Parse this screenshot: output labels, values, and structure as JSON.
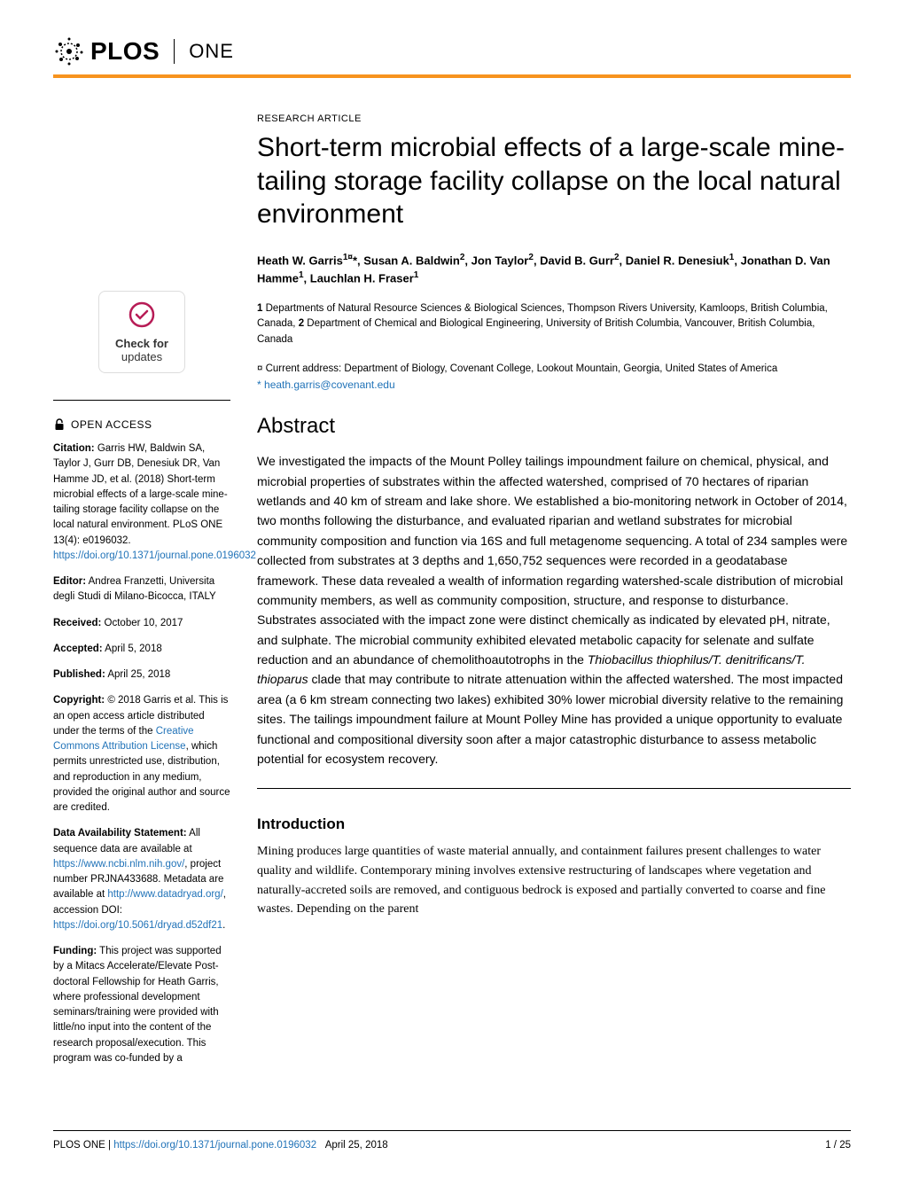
{
  "header": {
    "plos": "PLOS",
    "one": "ONE"
  },
  "article": {
    "type": "RESEARCH ARTICLE",
    "title": "Short-term microbial effects of a large-scale mine-tailing storage facility collapse on the local natural environment",
    "authors_html": "Heath W. Garris<sup>1¤</sup>*, Susan A. Baldwin<sup>2</sup>, Jon Taylor<sup>2</sup>, David B. Gurr<sup>2</sup>, Daniel R. Denesiuk<sup>1</sup>, Jonathan D. Van Hamme<sup>1</sup>, Lauchlan H. Fraser<sup>1</sup>",
    "affiliations_html": "<b>1</b> Departments of Natural Resource Sciences & Biological Sciences, Thompson Rivers University, Kamloops, British Columbia, Canada, <b>2</b> Department of Chemical and Biological Engineering, University of British Columbia, Vancouver, British Columbia, Canada",
    "current_address": "¤ Current address: Department of Biology, Covenant College, Lookout Mountain, Georgia, United States of America",
    "email_prefix": "* ",
    "email": "heath.garris@covenant.edu"
  },
  "abstract": {
    "heading": "Abstract",
    "text_html": "We investigated the impacts of the Mount Polley tailings impoundment failure on chemical, physical, and microbial properties of substrates within the affected watershed, comprised of 70 hectares of riparian wetlands and 40 km of stream and lake shore. We established a bio-monitoring network in October of 2014, two months following the disturbance, and evaluated riparian and wetland substrates for microbial community composition and function via 16S and full metagenome sequencing. A total of 234 samples were collected from substrates at 3 depths and 1,650,752 sequences were recorded in a geodatabase framework. These data revealed a wealth of information regarding watershed-scale distribution of microbial community members, as well as community composition, structure, and response to disturbance. Substrates associated with the impact zone were distinct chemically as indicated by elevated pH, nitrate, and sulphate. The microbial community exhibited elevated metabolic capacity for selenate and sulfate reduction and an abundance of chemolithoautotrophs in the <i>Thiobacillus thiophilus/T. denitrificans/T. thioparus</i> clade that may contribute to nitrate attenuation within the affected watershed. The most impacted area (a 6 km stream connecting two lakes) exhibited 30% lower microbial diversity relative to the remaining sites. The tailings impoundment failure at Mount Polley Mine has provided a unique opportunity to evaluate functional and compositional diversity soon after a major catastrophic disturbance to assess metabolic potential for ecosystem recovery."
  },
  "intro": {
    "heading": "Introduction",
    "text": "Mining produces large quantities of waste material annually, and containment failures present challenges to water quality and wildlife. Contemporary mining involves extensive restructuring of landscapes where vegetation and naturally-accreted soils are removed, and contiguous bedrock is exposed and partially converted to coarse and fine wastes. Depending on the parent"
  },
  "sidebar": {
    "check_updates": "Check for",
    "check_updates_sub": "updates",
    "open_access": "OPEN ACCESS",
    "citation_label": "Citation:",
    "citation_text": " Garris HW, Baldwin SA, Taylor J, Gurr DB, Denesiuk DR, Van Hamme JD, et al. (2018) Short-term microbial effects of a large-scale mine-tailing storage facility collapse on the local natural environment. PLoS ONE 13(4): e0196032. ",
    "citation_link": "https://doi.org/10.1371/journal.pone.0196032",
    "editor_label": "Editor:",
    "editor_text": " Andrea Franzetti, Universita degli Studi di Milano-Bicocca, ITALY",
    "received_label": "Received:",
    "received_text": " October 10, 2017",
    "accepted_label": "Accepted:",
    "accepted_text": " April 5, 2018",
    "published_label": "Published:",
    "published_text": " April 25, 2018",
    "copyright_label": "Copyright:",
    "copyright_text": " © 2018 Garris et al. This is an open access article distributed under the terms of the ",
    "copyright_link": "Creative Commons Attribution License",
    "copyright_text2": ", which permits unrestricted use, distribution, and reproduction in any medium, provided the original author and source are credited.",
    "data_label": "Data Availability Statement:",
    "data_text": " All sequence data are available at ",
    "data_link1": "https://www.ncbi.nlm.nih.gov/",
    "data_text2": ", project number PRJNA433688. Metadata are available at ",
    "data_link2": "http://www.datadryad.org/",
    "data_text3": ", accession DOI: ",
    "data_link3": "https://doi.org/10.5061/dryad.d52df21",
    "data_text4": ".",
    "funding_label": "Funding:",
    "funding_text": " This project was supported by a Mitacs Accelerate/Elevate Post-doctoral Fellowship for Heath Garris, where professional development seminars/training were provided with little/no input into the content of the research proposal/execution. This program was co-funded by a"
  },
  "footer": {
    "journal": "PLOS ONE | ",
    "doi": "https://doi.org/10.1371/journal.pone.0196032",
    "date": "April 25, 2018",
    "page": "1 / 25"
  },
  "colors": {
    "accent": "#f7931e",
    "link": "#2173b8",
    "check_border": "#dddddd"
  }
}
